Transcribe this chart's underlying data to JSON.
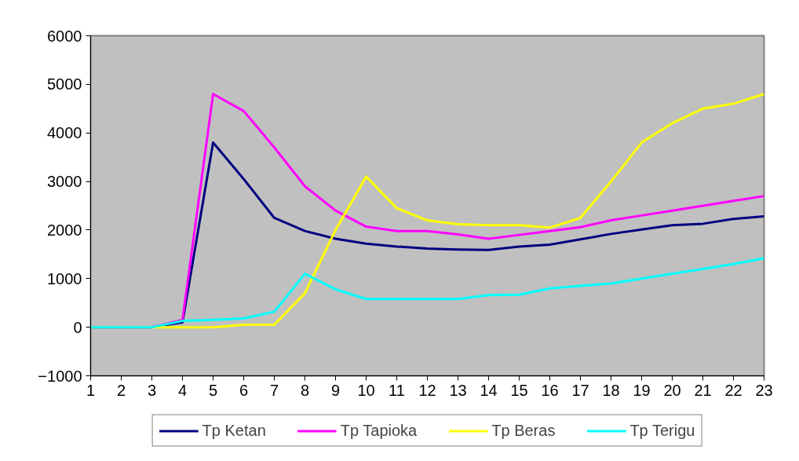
{
  "chart_data": {
    "type": "line",
    "x": [
      1,
      2,
      3,
      4,
      5,
      6,
      7,
      8,
      9,
      10,
      11,
      12,
      13,
      14,
      15,
      16,
      17,
      18,
      19,
      20,
      21,
      22,
      23
    ],
    "xlim": [
      1,
      23
    ],
    "xticks": [
      1,
      2,
      3,
      4,
      5,
      6,
      7,
      8,
      9,
      10,
      11,
      12,
      13,
      14,
      15,
      16,
      17,
      18,
      19,
      20,
      21,
      22,
      23
    ],
    "ylim": [
      -1000,
      6000
    ],
    "yticks": [
      -1000,
      0,
      1000,
      2000,
      3000,
      4000,
      5000,
      6000
    ],
    "series": [
      {
        "name": "Tp Ketan",
        "color": "#000080",
        "values": [
          0,
          0,
          0,
          100,
          3800,
          3050,
          2250,
          1980,
          1820,
          1720,
          1660,
          1620,
          1600,
          1590,
          1660,
          1700,
          1810,
          1920,
          2010,
          2100,
          2130,
          2230,
          2280
        ]
      },
      {
        "name": "Tp Tapioka",
        "color": "#ff00ff",
        "values": [
          0,
          0,
          0,
          150,
          4800,
          4450,
          3700,
          2900,
          2400,
          2070,
          1980,
          1980,
          1910,
          1820,
          1900,
          1980,
          2060,
          2200,
          2300,
          2400,
          2500,
          2600,
          2700
        ]
      },
      {
        "name": "Tp Beras",
        "color": "#ffff00",
        "values": [
          0,
          0,
          0,
          0,
          0,
          50,
          50,
          700,
          2000,
          3100,
          2450,
          2200,
          2120,
          2100,
          2100,
          2050,
          2250,
          3000,
          3800,
          4200,
          4500,
          4600,
          4800
        ]
      },
      {
        "name": "Tp Terigu",
        "color": "#00ffff",
        "values": [
          0,
          0,
          0,
          130,
          150,
          180,
          320,
          1100,
          780,
          580,
          580,
          580,
          580,
          660,
          670,
          800,
          850,
          900,
          1000,
          1100,
          1200,
          1300,
          1420
        ]
      }
    ],
    "legend": "bottom",
    "grid": false,
    "marker": "none",
    "line_style": "solid"
  }
}
